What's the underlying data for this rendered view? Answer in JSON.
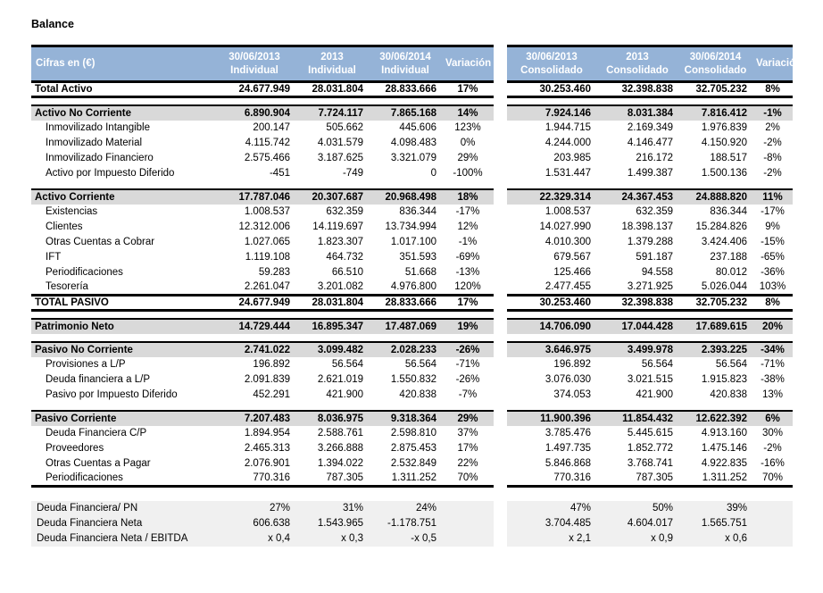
{
  "page_title": "Balance",
  "colors": {
    "header_bg": "#95B3D7",
    "header_text": "#FFFFFF",
    "section_row_bg": "#D9D9D9",
    "summary_block_bg": "#F0F0F0",
    "border": "#000000"
  },
  "table": {
    "unit_label": "Cifras en (€)",
    "left_headers": [
      {
        "line1": "30/06/2013",
        "line2": "Individual"
      },
      {
        "line1": "2013",
        "line2": "Individual"
      },
      {
        "line1": "30/06/2014",
        "line2": "Individual"
      },
      {
        "line1": "Variación",
        "line2": ""
      }
    ],
    "right_headers": [
      {
        "line1": "30/06/2013",
        "line2": "Consolidado"
      },
      {
        "line1": "2013",
        "line2": "Consolidado"
      },
      {
        "line1": "30/06/2014",
        "line2": "Consolidado"
      },
      {
        "line1": "Variación",
        "line2": ""
      }
    ],
    "rows": [
      {
        "type": "total",
        "label": "Total Activo",
        "ind": [
          "24.677.949",
          "28.031.804",
          "28.833.666",
          "17%"
        ],
        "con": [
          "30.253.460",
          "32.398.838",
          "32.705.232",
          "8%"
        ]
      },
      {
        "type": "spacer"
      },
      {
        "type": "section",
        "label": "Activo No Corriente",
        "ind": [
          "6.890.904",
          "7.724.117",
          "7.865.168",
          "14%"
        ],
        "con": [
          "7.924.146",
          "8.031.384",
          "7.816.412",
          "-1%"
        ]
      },
      {
        "type": "item",
        "label": "Inmovilizado Intangible",
        "ind": [
          "200.147",
          "505.662",
          "445.606",
          "123%"
        ],
        "con": [
          "1.944.715",
          "2.169.349",
          "1.976.839",
          "2%"
        ]
      },
      {
        "type": "item",
        "label": "Inmovilizado Material",
        "ind": [
          "4.115.742",
          "4.031.579",
          "4.098.483",
          "0%"
        ],
        "con": [
          "4.244.000",
          "4.146.477",
          "4.150.920",
          "-2%"
        ]
      },
      {
        "type": "item",
        "label": "Inmovilizado Financiero",
        "ind": [
          "2.575.466",
          "3.187.625",
          "3.321.079",
          "29%"
        ],
        "con": [
          "203.985",
          "216.172",
          "188.517",
          "-8%"
        ]
      },
      {
        "type": "item",
        "label": "Activo por Impuesto Diferido",
        "ind": [
          "-451",
          "-749",
          "0",
          "-100%"
        ],
        "con": [
          "1.531.447",
          "1.499.387",
          "1.500.136",
          "-2%"
        ]
      },
      {
        "type": "spacer"
      },
      {
        "type": "section",
        "label": "Activo Corriente",
        "ind": [
          "17.787.046",
          "20.307.687",
          "20.968.498",
          "18%"
        ],
        "con": [
          "22.329.314",
          "24.367.453",
          "24.888.820",
          "11%"
        ]
      },
      {
        "type": "item",
        "label": "Existencias",
        "ind": [
          "1.008.537",
          "632.359",
          "836.344",
          "-17%"
        ],
        "con": [
          "1.008.537",
          "632.359",
          "836.344",
          "-17%"
        ]
      },
      {
        "type": "item",
        "label": "Clientes",
        "ind": [
          "12.312.006",
          "14.119.697",
          "13.734.994",
          "12%"
        ],
        "con": [
          "14.027.990",
          "18.398.137",
          "15.284.826",
          "9%"
        ]
      },
      {
        "type": "item",
        "label": "Otras Cuentas a Cobrar",
        "ind": [
          "1.027.065",
          "1.823.307",
          "1.017.100",
          "-1%"
        ],
        "con": [
          "4.010.300",
          "1.379.288",
          "3.424.406",
          "-15%"
        ]
      },
      {
        "type": "item",
        "label": "IFT",
        "ind": [
          "1.119.108",
          "464.732",
          "351.593",
          "-69%"
        ],
        "con": [
          "679.567",
          "591.187",
          "237.188",
          "-65%"
        ]
      },
      {
        "type": "item",
        "label": "Periodificaciones",
        "ind": [
          "59.283",
          "66.510",
          "51.668",
          "-13%"
        ],
        "con": [
          "125.466",
          "94.558",
          "80.012",
          "-36%"
        ]
      },
      {
        "type": "item",
        "label": "Tesorería",
        "ind": [
          "2.261.047",
          "3.201.082",
          "4.976.800",
          "120%"
        ],
        "con": [
          "2.477.455",
          "3.271.925",
          "5.026.044",
          "103%"
        ]
      },
      {
        "type": "total",
        "label": "TOTAL PASIVO",
        "ind": [
          "24.677.949",
          "28.031.804",
          "28.833.666",
          "17%"
        ],
        "con": [
          "30.253.460",
          "32.398.838",
          "32.705.232",
          "8%"
        ]
      },
      {
        "type": "spacer"
      },
      {
        "type": "section",
        "label": "Patrimonio Neto",
        "ind": [
          "14.729.444",
          "16.895.347",
          "17.487.069",
          "19%"
        ],
        "con": [
          "14.706.090",
          "17.044.428",
          "17.689.615",
          "20%"
        ]
      },
      {
        "type": "spacer"
      },
      {
        "type": "section",
        "label": "Pasivo No Corriente",
        "ind": [
          "2.741.022",
          "3.099.482",
          "2.028.233",
          "-26%"
        ],
        "con": [
          "3.646.975",
          "3.499.978",
          "2.393.225",
          "-34%"
        ]
      },
      {
        "type": "item",
        "label": "Provisiones a L/P",
        "ind": [
          "196.892",
          "56.564",
          "56.564",
          "-71%"
        ],
        "con": [
          "196.892",
          "56.564",
          "56.564",
          "-71%"
        ]
      },
      {
        "type": "item",
        "label": "Deuda financiera a L/P",
        "ind": [
          "2.091.839",
          "2.621.019",
          "1.550.832",
          "-26%"
        ],
        "con": [
          "3.076.030",
          "3.021.515",
          "1.915.823",
          "-38%"
        ]
      },
      {
        "type": "item",
        "label": "Pasivo por Impuesto Diferido",
        "ind": [
          "452.291",
          "421.900",
          "420.838",
          "-7%"
        ],
        "con": [
          "374.053",
          "421.900",
          "420.838",
          "13%"
        ]
      },
      {
        "type": "spacer"
      },
      {
        "type": "section",
        "label": "Pasivo Corriente",
        "ind": [
          "7.207.483",
          "8.036.975",
          "9.318.364",
          "29%"
        ],
        "con": [
          "11.900.396",
          "11.854.432",
          "12.622.392",
          "6%"
        ]
      },
      {
        "type": "item",
        "label": "Deuda Financiera C/P",
        "ind": [
          "1.894.954",
          "2.588.761",
          "2.598.810",
          "37%"
        ],
        "con": [
          "3.785.476",
          "5.445.615",
          "4.913.160",
          "30%"
        ]
      },
      {
        "type": "item",
        "label": "Proveedores",
        "ind": [
          "2.465.313",
          "3.266.888",
          "2.875.453",
          "17%"
        ],
        "con": [
          "1.497.735",
          "1.852.772",
          "1.475.146",
          "-2%"
        ]
      },
      {
        "type": "item",
        "label": "Otras Cuentas a Pagar",
        "ind": [
          "2.076.901",
          "1.394.022",
          "2.532.849",
          "22%"
        ],
        "con": [
          "5.846.868",
          "3.768.741",
          "4.922.835",
          "-16%"
        ]
      },
      {
        "type": "item",
        "label": "Periodificaciones",
        "ind": [
          "770.316",
          "787.305",
          "1.311.252",
          "70%"
        ],
        "con": [
          "770.316",
          "787.305",
          "1.311.252",
          "70%"
        ],
        "block_end": true
      },
      {
        "type": "spacer",
        "tall": true
      },
      {
        "type": "summary",
        "label": "Deuda Financiera/ PN",
        "ind": [
          "27%",
          "31%",
          "24%",
          ""
        ],
        "con": [
          "47%",
          "50%",
          "39%",
          ""
        ]
      },
      {
        "type": "summary",
        "label": "Deuda Financiera Neta",
        "ind": [
          "606.638",
          "1.543.965",
          "-1.178.751",
          ""
        ],
        "con": [
          "3.704.485",
          "4.604.017",
          "1.565.751",
          ""
        ]
      },
      {
        "type": "summary",
        "label": "Deuda Financiera Neta / EBITDA",
        "ind": [
          "x 0,4",
          "x 0,3",
          "-x 0,5",
          ""
        ],
        "con": [
          "x 2,1",
          "x 0,9",
          "x 0,6",
          ""
        ]
      }
    ]
  }
}
